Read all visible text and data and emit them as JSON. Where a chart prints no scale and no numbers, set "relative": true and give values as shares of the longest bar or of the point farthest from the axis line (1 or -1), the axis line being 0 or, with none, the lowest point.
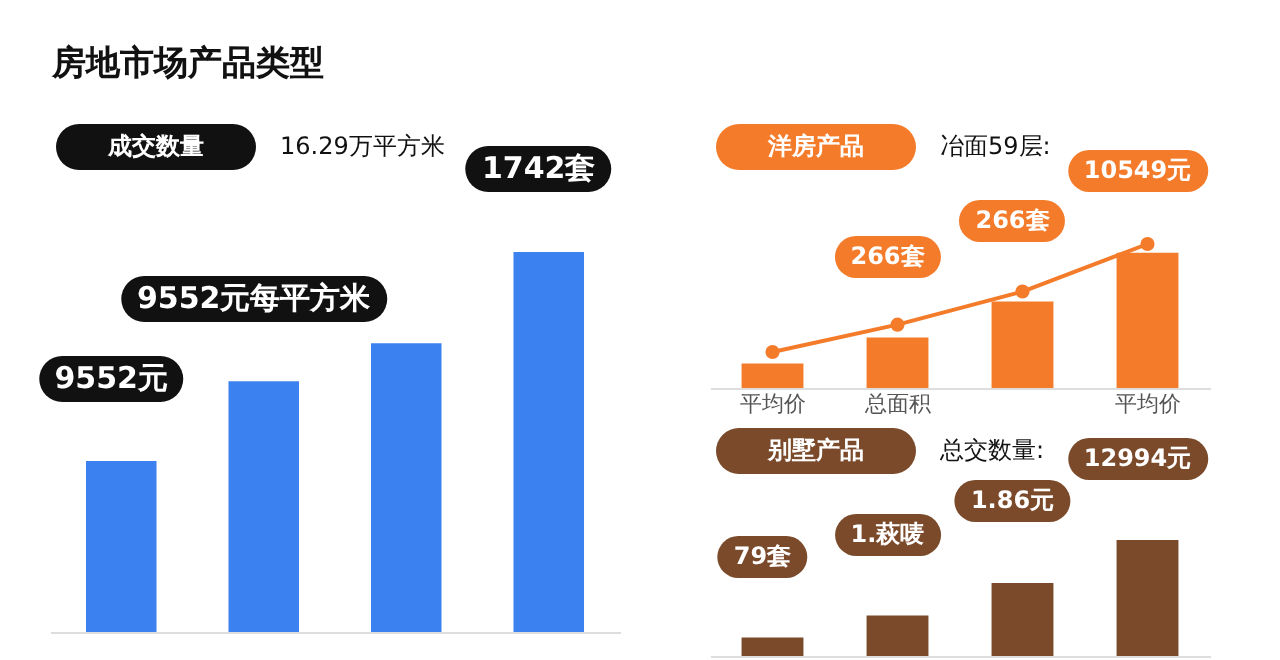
{
  "chart_data": [
    {
      "type": "bar",
      "title": "房地市场产品类型",
      "subtitle": "成交数量",
      "annotations": [
        "16.29万平方米",
        "9552元",
        "9552元每平方米",
        "1742套"
      ],
      "relative": true,
      "categories": [
        null,
        null,
        null,
        null
      ],
      "series": [
        {
          "color": "#3b82f0",
          "values": [
            0.45,
            0.66,
            0.76,
            1
          ]
        }
      ]
    },
    {
      "type": "bar",
      "title": "洋房产品",
      "annotations": [
        "冶面59层:",
        "266套",
        "266套",
        "10549元"
      ],
      "relative": true,
      "categories": [
        "平均价",
        "总面积",
        null,
        "平均价"
      ],
      "series": [
        {
          "color": "#f47b2a",
          "values": [
            0.17,
            0.35,
            0.6,
            0.94
          ]
        },
        {
          "type": "line",
          "color": "#f47b2a",
          "marker": "circle",
          "values": [
            0.25,
            0.44,
            0.67,
            1
          ]
        }
      ]
    },
    {
      "type": "bar",
      "title": "别墅产品",
      "annotations": [
        "总交数量:",
        "79套",
        "1.萩唛",
        "1.86元",
        "12994元"
      ],
      "relative": true,
      "categories": [
        null,
        null,
        null,
        null
      ],
      "series": [
        {
          "color": "#7a4a2a",
          "values": [
            0.16,
            0.35,
            0.63,
            1
          ]
        }
      ]
    }
  ]
}
